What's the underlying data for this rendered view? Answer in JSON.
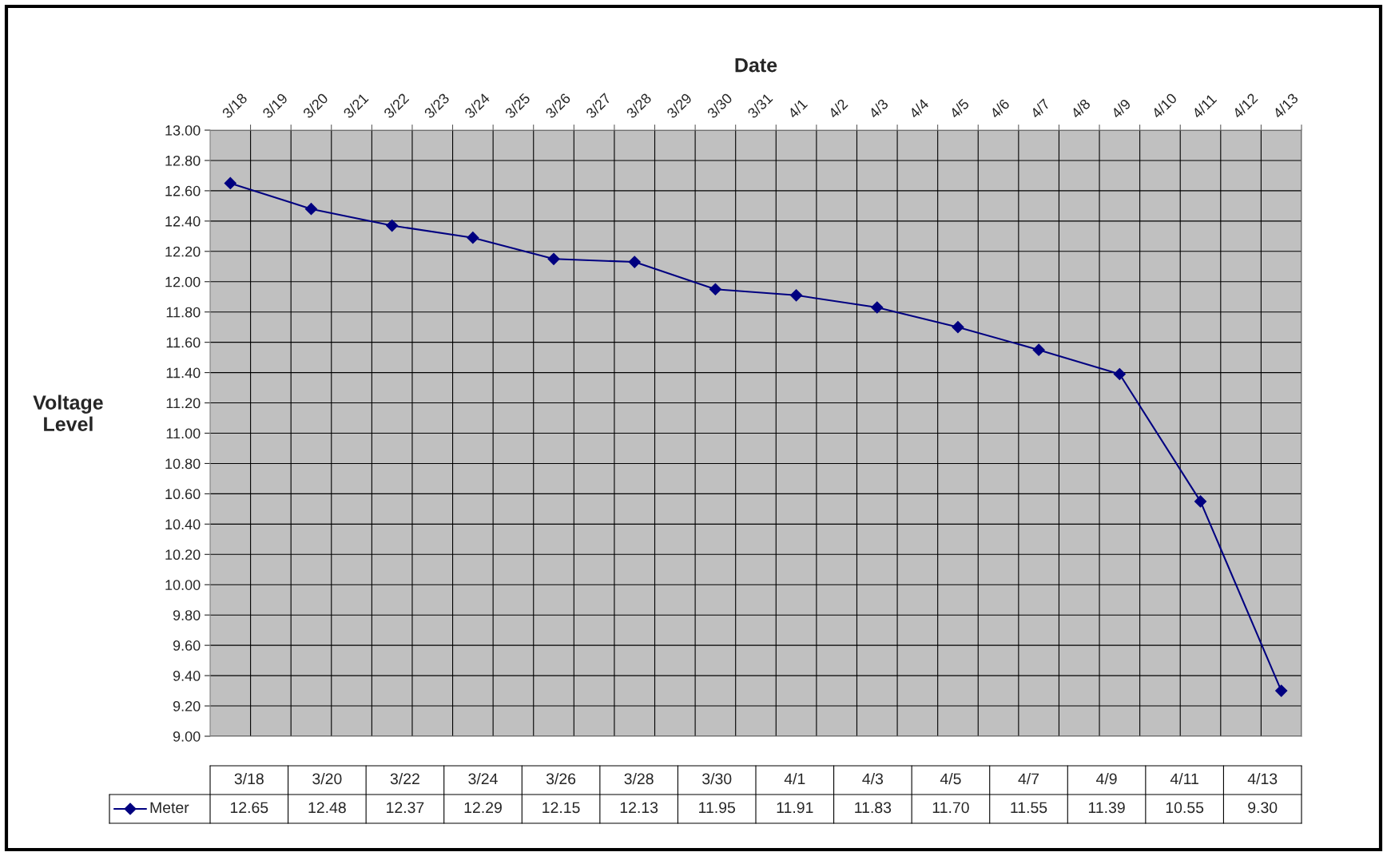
{
  "chart_data": {
    "type": "line",
    "xlabel": "Date",
    "ylabel": "Voltage\nLevel",
    "categories": [
      "3/18",
      "3/19",
      "3/20",
      "3/21",
      "3/22",
      "3/23",
      "3/24",
      "3/25",
      "3/26",
      "3/27",
      "3/28",
      "3/29",
      "3/30",
      "3/31",
      "4/1",
      "4/2",
      "4/3",
      "4/4",
      "4/5",
      "4/6",
      "4/7",
      "4/8",
      "4/9",
      "4/10",
      "4/11",
      "4/12",
      "4/13"
    ],
    "series": [
      {
        "name": "Meter",
        "color": "#000080",
        "values": [
          12.65,
          null,
          12.48,
          null,
          12.37,
          null,
          12.29,
          null,
          12.15,
          null,
          12.13,
          null,
          11.95,
          null,
          11.91,
          null,
          11.83,
          null,
          11.7,
          null,
          11.55,
          null,
          11.39,
          null,
          10.55,
          null,
          9.3
        ]
      }
    ],
    "value_labels": [
      "12.65",
      null,
      "12.48",
      null,
      "12.37",
      null,
      "12.29",
      null,
      "12.15",
      null,
      "12.13",
      null,
      "11.95",
      null,
      "11.91",
      null,
      "11.83",
      null,
      "11.70",
      null,
      "11.55",
      null,
      "11.39",
      null,
      "10.55",
      null,
      "9.30"
    ],
    "ylim": [
      9,
      13
    ],
    "yticks": [
      {
        "value": 9,
        "label": "9.00"
      },
      {
        "value": 9.2,
        "label": "9.20"
      },
      {
        "value": 9.4,
        "label": "9.40"
      },
      {
        "value": 9.6,
        "label": "9.60"
      },
      {
        "value": 9.8,
        "label": "9.80"
      },
      {
        "value": 10,
        "label": "10.00"
      },
      {
        "value": 10.2,
        "label": "10.20"
      },
      {
        "value": 10.4,
        "label": "10.40"
      },
      {
        "value": 10.6,
        "label": "10.60"
      },
      {
        "value": 10.8,
        "label": "10.80"
      },
      {
        "value": 11,
        "label": "11.00"
      },
      {
        "value": 11.2,
        "label": "11.20"
      },
      {
        "value": 11.4,
        "label": "11.40"
      },
      {
        "value": 11.6,
        "label": "11.60"
      },
      {
        "value": 11.8,
        "label": "11.80"
      },
      {
        "value": 12,
        "label": "12.00"
      },
      {
        "value": 12.2,
        "label": "12.20"
      },
      {
        "value": 12.4,
        "label": "12.40"
      },
      {
        "value": 12.6,
        "label": "12.60"
      },
      {
        "value": 12.8,
        "label": "12.80"
      },
      {
        "value": 13,
        "label": "13.00"
      }
    ],
    "grid": true,
    "marker": "diamond",
    "line_style": "solid",
    "legend": "bottom left"
  }
}
